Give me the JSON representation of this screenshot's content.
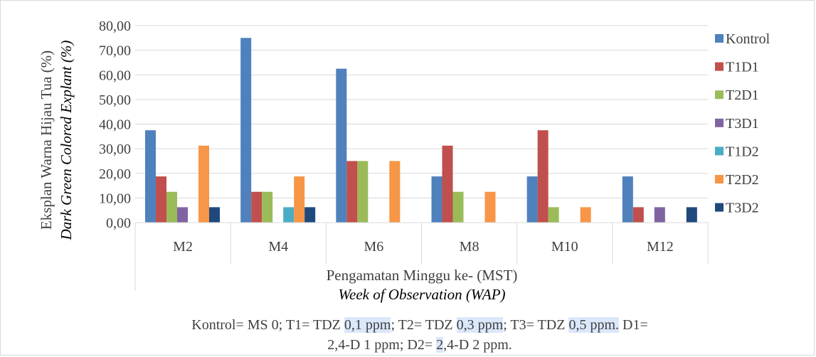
{
  "chart_data": {
    "type": "bar",
    "ylabel": "Eksplan Warna Hijau Tua (%)",
    "ylabel_italic": "Dark Green Colored Explant (%)",
    "xlabel": "Pengamatan Minggu ke- (MST)",
    "xlabel_italic": "Week of Observation (WAP)",
    "ylim": [
      0,
      80
    ],
    "yticks": [
      "0,00",
      "10,00",
      "20,00",
      "30,00",
      "40,00",
      "50,00",
      "60,00",
      "70,00",
      "80,00"
    ],
    "categories": [
      "M2",
      "M4",
      "M6",
      "M8",
      "M10",
      "M12"
    ],
    "series": [
      {
        "name": "Kontrol",
        "color": "#4f81bd",
        "values": [
          37.5,
          75.0,
          62.5,
          18.75,
          18.75,
          18.75
        ]
      },
      {
        "name": "T1D1",
        "color": "#c0504d",
        "values": [
          18.75,
          12.5,
          25.0,
          31.25,
          37.5,
          6.25
        ]
      },
      {
        "name": "T2D1",
        "color": "#9bbb59",
        "values": [
          12.5,
          12.5,
          25.0,
          12.5,
          6.25,
          0
        ]
      },
      {
        "name": "T3D1",
        "color": "#8064a2",
        "values": [
          6.25,
          0,
          0,
          0,
          0,
          6.25
        ]
      },
      {
        "name": "T1D2",
        "color": "#4bacc6",
        "values": [
          0,
          6.25,
          0,
          0,
          0,
          0
        ]
      },
      {
        "name": "T2D2",
        "color": "#f79646",
        "values": [
          31.25,
          18.75,
          25.0,
          12.5,
          6.25,
          0
        ]
      },
      {
        "name": "T3D2",
        "color": "#1f497d",
        "values": [
          6.25,
          6.25,
          0,
          0,
          0,
          6.25
        ]
      }
    ],
    "grid": true,
    "legend": "right"
  },
  "caption": {
    "line1_parts": [
      "Kontrol= MS 0; T1= TDZ ",
      "0,1 ppm",
      "; T2= TDZ ",
      "0,3 ppm",
      "; T3= TDZ ",
      "0,5 ppm.",
      " D1="
    ],
    "line2_parts": [
      "2,4-D 1 ppm; D2= ",
      "2",
      ",4-D 2 ppm."
    ]
  }
}
